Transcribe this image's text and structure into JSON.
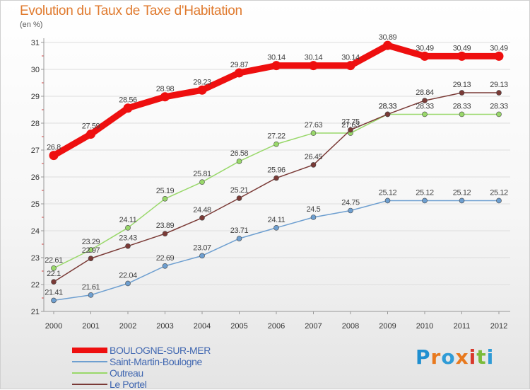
{
  "header": {
    "title": "Evolution du Taux de Taxe d'Habitation",
    "unit": "(en %)"
  },
  "branding": {
    "logo_text": "Proxiti",
    "letter_colors": [
      "#1f8fd0",
      "#e8791e",
      "#2f9bd6",
      "#e8791e",
      "#d8382b",
      "#7bbb3b",
      "#2f9bd6"
    ]
  },
  "chart_data": {
    "type": "line",
    "title": "Evolution du Taux de Taxe d'Habitation",
    "ylabel": "(en %)",
    "xlabel": "",
    "x": [
      "2000",
      "2001",
      "2002",
      "2003",
      "2004",
      "2005",
      "2006",
      "2007",
      "2008",
      "2009",
      "2010",
      "2011",
      "2012"
    ],
    "ylim": [
      21,
      31
    ],
    "yticks": [
      "21",
      "22",
      "23",
      "24",
      "25",
      "26",
      "27",
      "28",
      "29",
      "30",
      "31"
    ],
    "grid": "horizontal",
    "legend_position": "bottom-left",
    "series": [
      {
        "name": "BOULOGNE-SUR-MER",
        "color": "#ee0f0f",
        "emphasis": "thick",
        "values": [
          26.8,
          27.59,
          28.56,
          28.98,
          29.23,
          29.87,
          30.14,
          30.14,
          30.14,
          30.89,
          30.49,
          30.49,
          30.49
        ],
        "labels": [
          "26.8",
          "27.59",
          "28.56",
          "28.98",
          "29.23",
          "29.87",
          "30.14",
          "30.14",
          "30.14",
          "30.89",
          "30.49",
          "30.49",
          "30.49"
        ]
      },
      {
        "name": "Saint-Martin-Boulogne",
        "color": "#6e9fd0",
        "emphasis": "normal",
        "values": [
          21.41,
          21.61,
          22.04,
          22.69,
          23.07,
          23.71,
          24.11,
          24.5,
          24.75,
          25.12,
          25.12,
          25.12,
          25.12
        ],
        "labels": [
          "21.41",
          "21.61",
          "22.04",
          "22.69",
          "23.07",
          "23.71",
          "24.11",
          "24.5",
          "24.75",
          "25.12",
          "25.12",
          "25.12",
          "25.12"
        ]
      },
      {
        "name": "Outreau",
        "color": "#99d86a",
        "emphasis": "normal",
        "values": [
          22.61,
          23.29,
          24.11,
          25.19,
          25.81,
          26.58,
          27.22,
          27.63,
          27.63,
          28.33,
          28.33,
          28.33,
          28.33
        ],
        "labels": [
          "22.61",
          "23.29",
          "24.11",
          "25.19",
          "25.81",
          "26.58",
          "27.22",
          "27.63",
          "27.63",
          "28.33",
          "28.33",
          "28.33",
          "28.33"
        ]
      },
      {
        "name": "Le Portel",
        "color": "#7a3a36",
        "emphasis": "normal",
        "values": [
          22.1,
          22.97,
          23.43,
          23.89,
          24.48,
          25.21,
          25.96,
          26.45,
          27.75,
          28.33,
          28.84,
          29.13,
          29.13
        ],
        "labels": [
          "22.1",
          "22.97",
          "23.43",
          "23.89",
          "24.48",
          "25.21",
          "25.96",
          "26.45",
          "27.75",
          "28.33",
          "28.84",
          "29.13",
          "29.13"
        ]
      }
    ]
  }
}
